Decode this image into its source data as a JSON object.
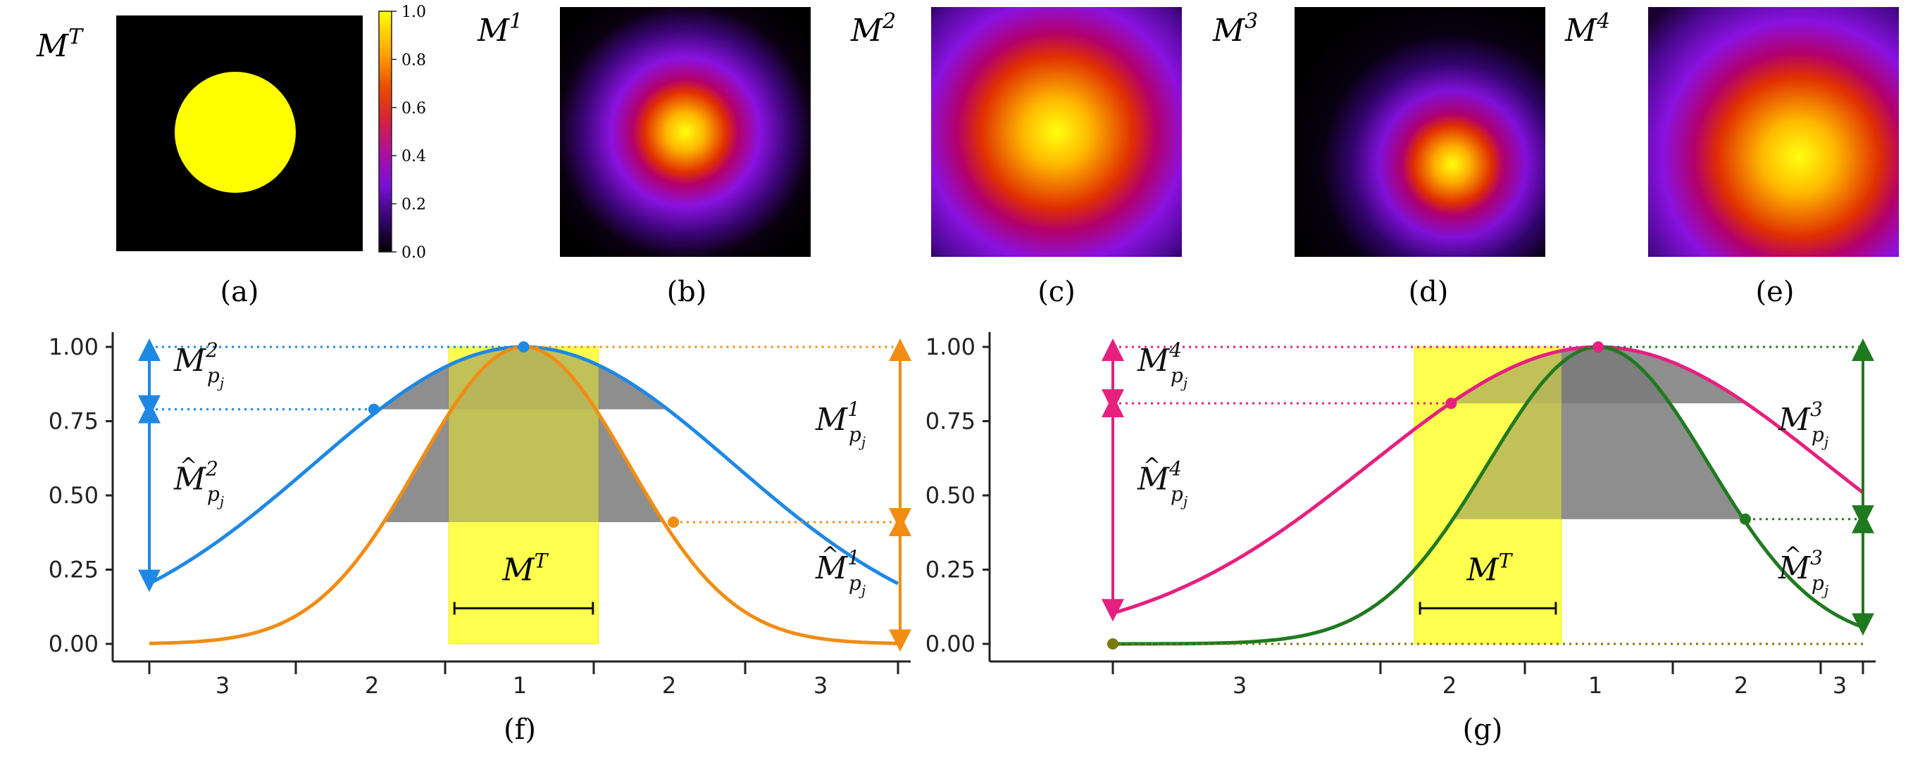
{
  "colors": {
    "blue": "#1e88e5",
    "orange": "#f28c13",
    "pink": "#e6207f",
    "green": "#1f7a1f",
    "yellow_fill": "#ffff33",
    "gray_fill": "#7a7a7a",
    "olive": "#7a7a10"
  },
  "top_panels": {
    "a": {
      "label": "M",
      "sup": "T",
      "caption": "(a)",
      "colormap": "gnuplot",
      "colorbar_ticks": [
        "1.0",
        "0.8",
        "0.6",
        "0.4",
        "0.2",
        "0.0"
      ]
    },
    "b": {
      "label": "M",
      "sup": "1",
      "caption": "(b)"
    },
    "c": {
      "label": "M",
      "sup": "2",
      "caption": "(c)"
    },
    "d": {
      "label": "M",
      "sup": "3",
      "caption": "(d)"
    },
    "e": {
      "label": "M",
      "sup": "4",
      "caption": "(e)"
    }
  },
  "chart_data": [
    {
      "type": "line",
      "caption": "(f)",
      "ylim": [
        0,
        1
      ],
      "yticks": [
        "1.00",
        "0.75",
        "0.50",
        "0.25",
        "0.00"
      ],
      "x_region_labels": [
        "3",
        "2",
        "1",
        "2",
        "3"
      ],
      "target_label": {
        "base": "M",
        "sup": "T"
      },
      "target_interval": [
        -0.5,
        0.5
      ],
      "series": [
        {
          "name": "M^2",
          "color": "blue",
          "shape": "gaussian",
          "sigma": 1.4,
          "x_range": [
            -2.5,
            2.5
          ],
          "marker": {
            "x": -1.0,
            "y": 0.79
          }
        },
        {
          "name": "M^1",
          "color": "orange",
          "shape": "gaussian",
          "sigma": 0.7,
          "x_range": [
            -2.5,
            2.5
          ],
          "marker": {
            "x": 1.0,
            "y": 0.41
          }
        }
      ],
      "peak": {
        "x": 0.0,
        "y": 1.0
      },
      "annotations": [
        {
          "base": "M",
          "sup": "2",
          "sub": "p",
          "subsub": "j",
          "hat": false,
          "side": "left"
        },
        {
          "base": "M",
          "sup": "2",
          "sub": "p",
          "subsub": "j",
          "hat": true,
          "side": "left"
        },
        {
          "base": "M",
          "sup": "1",
          "sub": "p",
          "subsub": "j",
          "hat": false,
          "side": "right"
        },
        {
          "base": "M",
          "sup": "1",
          "sub": "p",
          "subsub": "j",
          "hat": true,
          "side": "right"
        }
      ]
    },
    {
      "type": "line",
      "caption": "(g)",
      "ylim": [
        0,
        1
      ],
      "yticks": [
        "1.00",
        "0.75",
        "0.50",
        "0.25",
        "0.00"
      ],
      "x_region_labels": [
        "3",
        "2",
        "1",
        "2",
        "3"
      ],
      "target_label": {
        "base": "M",
        "sup": "T"
      },
      "target_interval": [
        -1.25,
        -0.25
      ],
      "series": [
        {
          "name": "M^4",
          "color": "pink",
          "shape": "gaussian",
          "sigma": 1.55,
          "x_range": [
            -3.3,
            1.8
          ],
          "marker": {
            "x": -1.0,
            "y": 0.81
          }
        },
        {
          "name": "M^3",
          "color": "green",
          "shape": "gaussian",
          "sigma": 0.75,
          "x_range": [
            -3.3,
            1.8
          ],
          "marker": {
            "x": 1.0,
            "y": 0.42
          }
        }
      ],
      "peak": {
        "x": 0.0,
        "y": 1.0
      },
      "origin_marker": {
        "x": -3.3,
        "y": 0.0
      },
      "annotations": [
        {
          "base": "M",
          "sup": "4",
          "sub": "p",
          "subsub": "j",
          "hat": false,
          "side": "left"
        },
        {
          "base": "M",
          "sup": "4",
          "sub": "p",
          "subsub": "j",
          "hat": true,
          "side": "left"
        },
        {
          "base": "M",
          "sup": "3",
          "sub": "p",
          "subsub": "j",
          "hat": false,
          "side": "right"
        },
        {
          "base": "M",
          "sup": "3",
          "sub": "p",
          "subsub": "j",
          "hat": true,
          "side": "right"
        }
      ]
    }
  ]
}
